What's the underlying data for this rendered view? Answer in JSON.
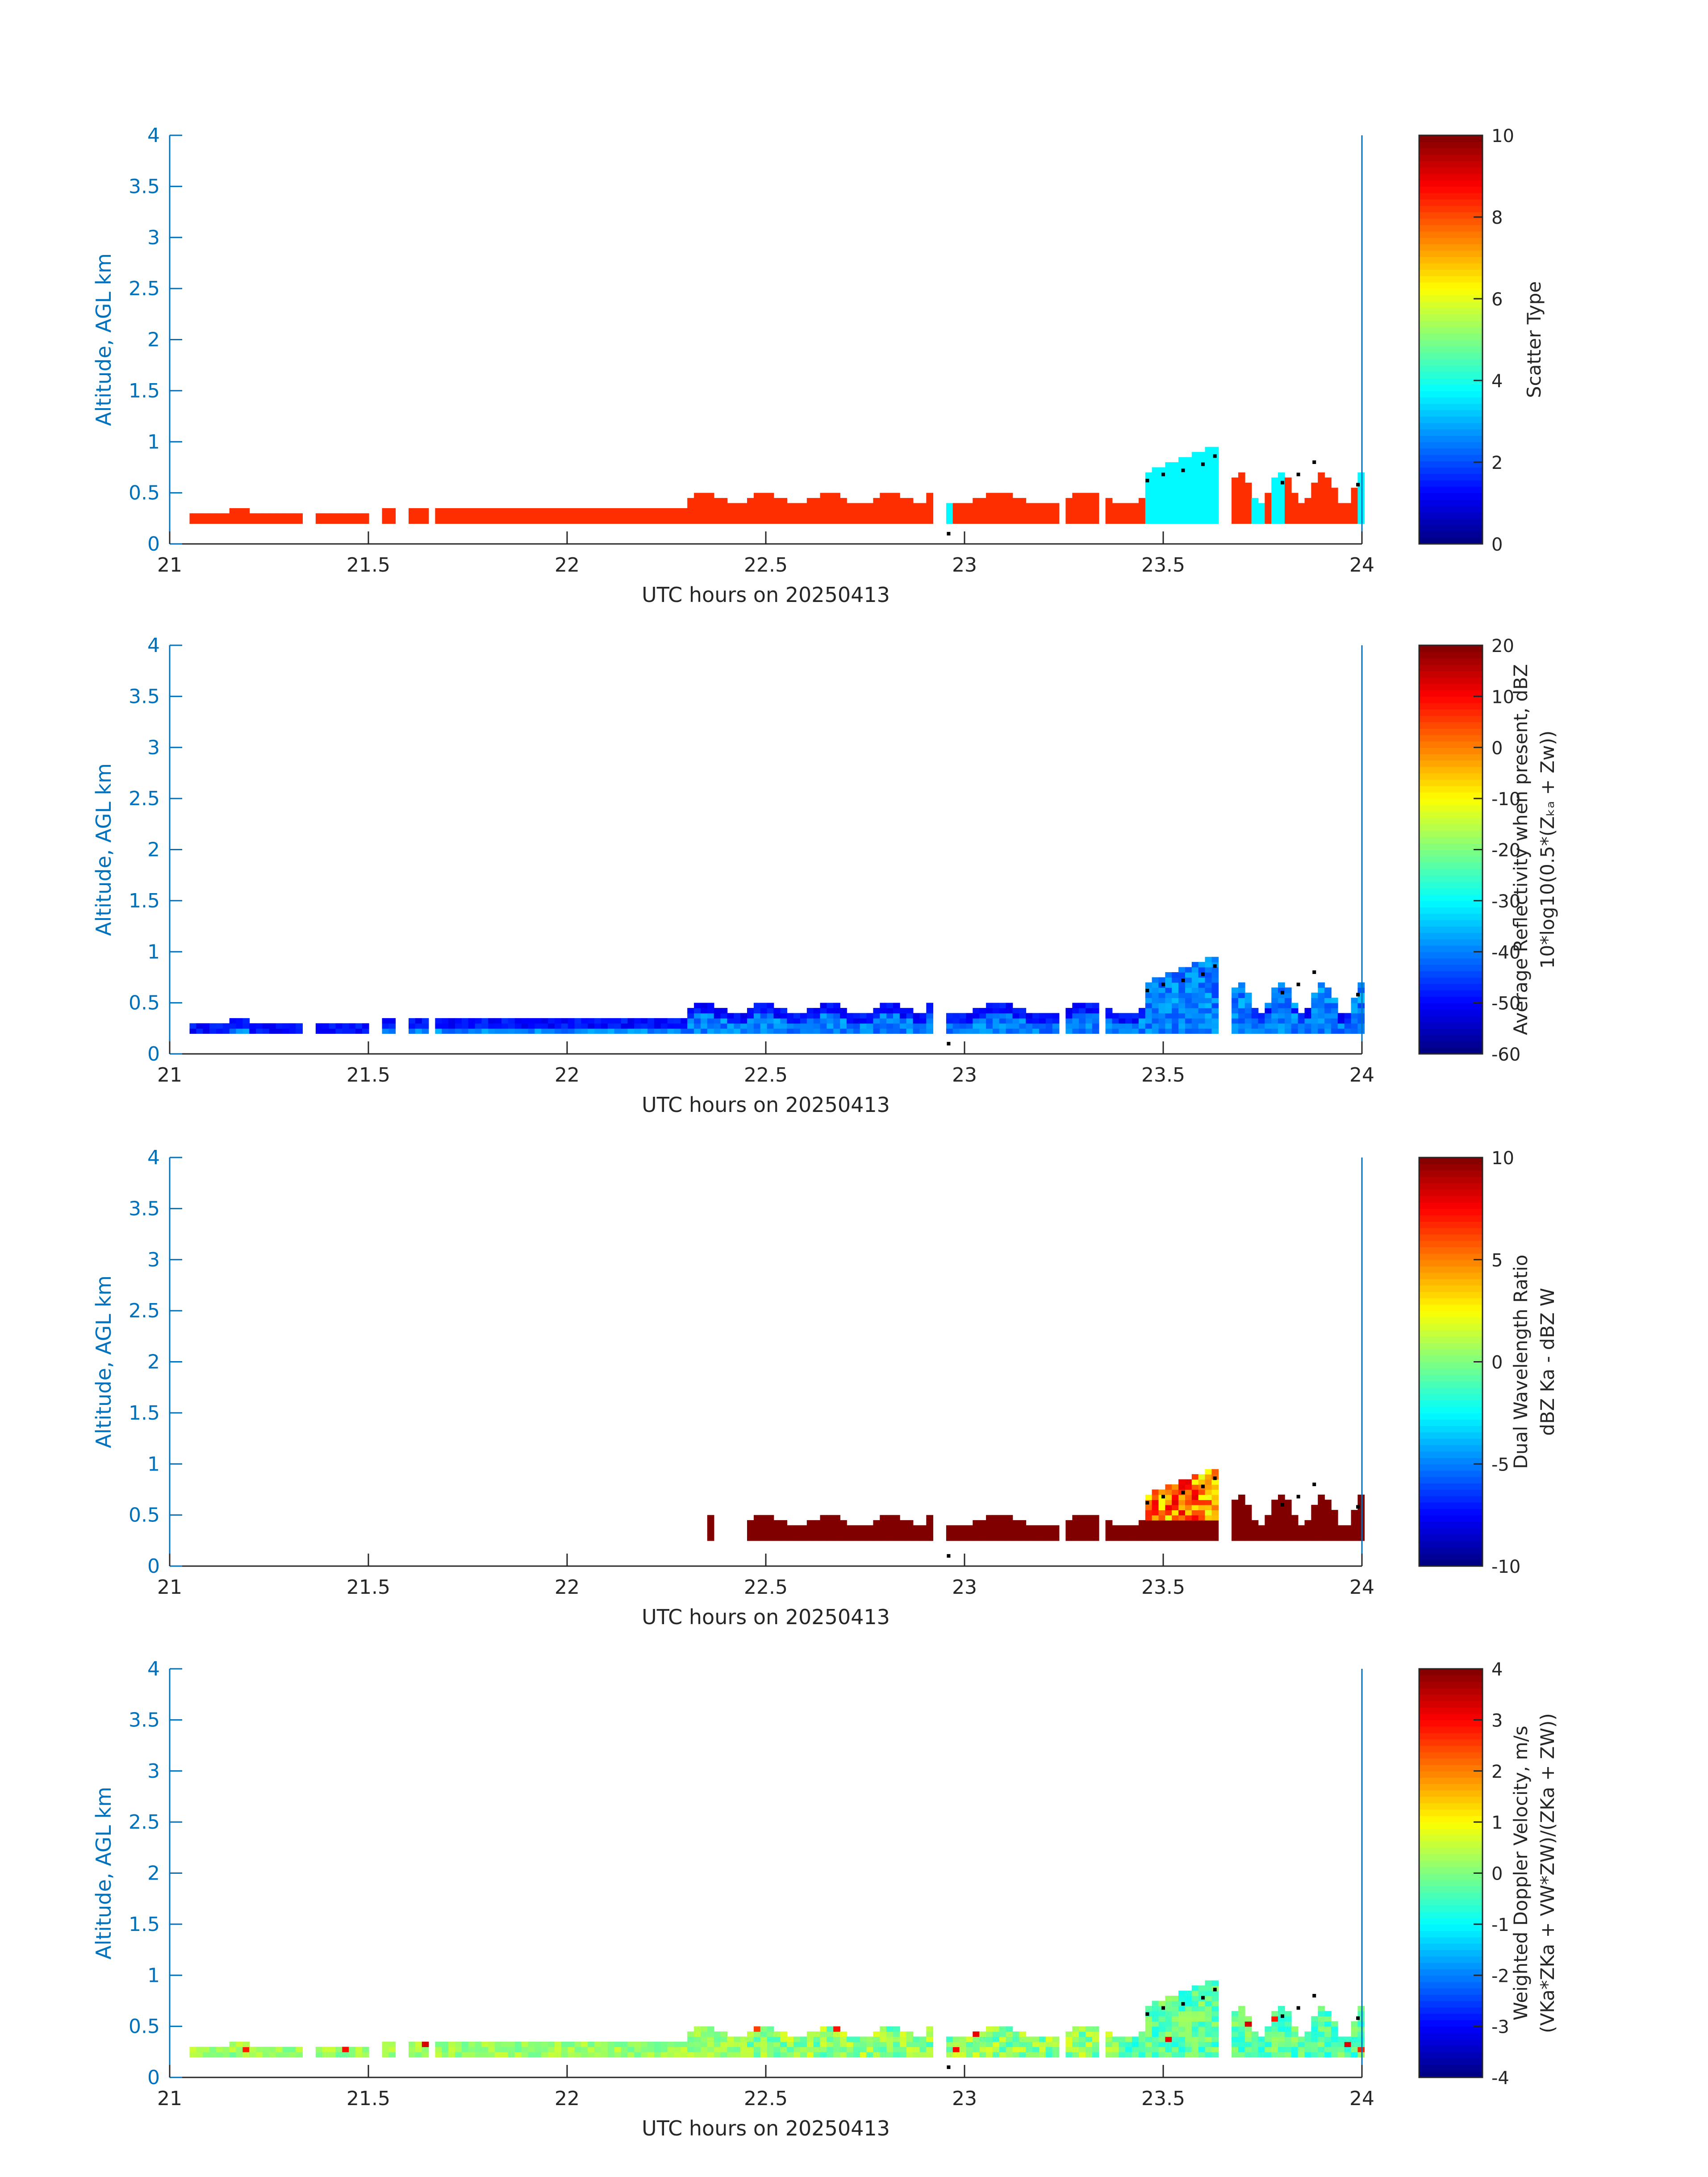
{
  "figure": {
    "panel_count": 4,
    "axis_color": "#0072BD",
    "grid": false,
    "colormap": "jet"
  },
  "chart_data": [
    {
      "type": "heatmap",
      "title": "",
      "xlabel": "UTC hours on 20250413",
      "ylabel": "Altitude, AGL km",
      "xlim": [
        21,
        24
      ],
      "ylim": [
        0,
        4
      ],
      "xticks": [
        "21",
        "21.5",
        "22",
        "22.5",
        "23",
        "23.5",
        "24"
      ],
      "yticks": [
        "0",
        "0.5",
        "1",
        "1.5",
        "2",
        "2.5",
        "3",
        "3.5",
        "4"
      ],
      "colorbar": {
        "label_lines": [
          "Scatter Type"
        ],
        "clim": [
          0,
          10
        ],
        "ticks": [
          "0",
          "2",
          "4",
          "6",
          "8",
          "10"
        ]
      }
    },
    {
      "type": "heatmap",
      "title": "",
      "xlabel": "UTC hours on 20250413",
      "ylabel": "Altitude, AGL km",
      "xlim": [
        21,
        24
      ],
      "ylim": [
        0,
        4
      ],
      "xticks": [
        "21",
        "21.5",
        "22",
        "22.5",
        "23",
        "23.5",
        "24"
      ],
      "yticks": [
        "0",
        "0.5",
        "1",
        "1.5",
        "2",
        "2.5",
        "3",
        "3.5",
        "4"
      ],
      "colorbar": {
        "label_lines": [
          "Average Reflectivity when present, dBZ",
          "10*log10(0.5*(Zₖₐ + Zw))"
        ],
        "clim": [
          -60,
          20
        ],
        "ticks": [
          "-60",
          "-50",
          "-40",
          "-30",
          "-20",
          "-10",
          "0",
          "10",
          "20"
        ]
      }
    },
    {
      "type": "heatmap",
      "title": "",
      "xlabel": "UTC hours on 20250413",
      "ylabel": "Altitude, AGL km",
      "xlim": [
        21,
        24
      ],
      "ylim": [
        0,
        4
      ],
      "xticks": [
        "21",
        "21.5",
        "22",
        "22.5",
        "23",
        "23.5",
        "24"
      ],
      "yticks": [
        "0",
        "0.5",
        "1",
        "1.5",
        "2",
        "2.5",
        "3",
        "3.5",
        "4"
      ],
      "colorbar": {
        "label_lines": [
          "Dual Wavelength Ratio",
          "dBZ Ka - dBZ W"
        ],
        "clim": [
          -10,
          10
        ],
        "ticks": [
          "-10",
          "-5",
          "0",
          "5",
          "10"
        ]
      }
    },
    {
      "type": "heatmap",
      "title": "",
      "xlabel": "UTC hours on 20250413",
      "ylabel": "Altitude, AGL km",
      "xlim": [
        21,
        24
      ],
      "ylim": [
        0,
        4
      ],
      "xticks": [
        "21",
        "21.5",
        "22",
        "22.5",
        "23",
        "23.5",
        "24"
      ],
      "yticks": [
        "0",
        "0.5",
        "1",
        "1.5",
        "2",
        "2.5",
        "3",
        "3.5",
        "4"
      ],
      "colorbar": {
        "label_lines": [
          "Weighted Doppler Velocity, m/s",
          "(VKa*ZKa + VW*ZW)/(ZKa + ZW))"
        ],
        "clim": [
          -4,
          4
        ],
        "ticks": [
          "-4",
          "-3",
          "-2",
          "-1",
          "0",
          "1",
          "2",
          "3",
          "4"
        ]
      }
    }
  ]
}
